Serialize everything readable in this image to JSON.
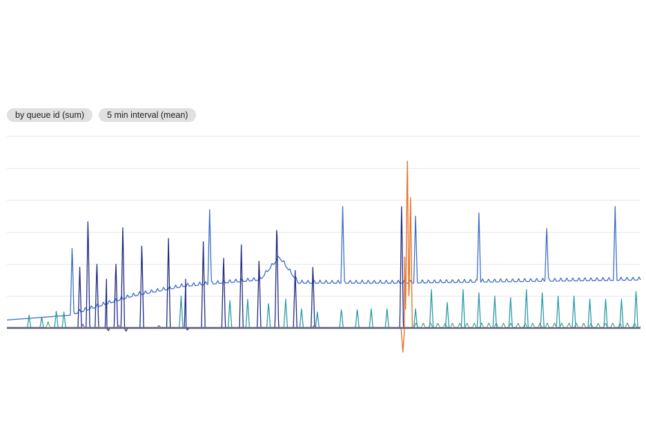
{
  "filters": {
    "group_by_label": "by queue id (sum)",
    "interval_label": "5 min interval (mean)"
  },
  "colors": {
    "grid": "#e6e6e6",
    "baseline": "#5f6368"
  },
  "chart_data": {
    "type": "line",
    "title": "",
    "xlabel": "",
    "ylabel": "",
    "grid": true,
    "gridlines": 6,
    "x_ticks_shown": false,
    "y_ticks_shown": false,
    "ylim": [
      -0.8,
      6.2
    ],
    "legend": "none",
    "series": [
      {
        "color": "#3d6dc8",
        "width": 1.3,
        "base": [
          [
            0,
            0.25
          ],
          [
            0.1,
            0.4
          ],
          [
            0.2,
            1.0
          ],
          [
            0.28,
            1.3
          ],
          [
            0.4,
            1.5
          ],
          [
            0.43,
            2.2
          ],
          [
            0.46,
            1.4
          ],
          [
            0.62,
            1.4
          ],
          [
            1.0,
            1.5
          ]
        ],
        "ripple_period": 0.0095,
        "ripple_amp": 0.1,
        "ripple_from": 0.1,
        "spikes": [
          [
            0.103,
            2.6
          ],
          [
            0.32,
            3.7
          ],
          [
            0.53,
            3.8
          ],
          [
            0.645,
            3.5
          ],
          [
            0.745,
            3.6
          ],
          [
            0.852,
            3.2
          ],
          [
            0.96,
            3.8
          ]
        ]
      },
      {
        "color": "#1f2a80",
        "width": 1.3,
        "base": [
          [
            0,
            0.0
          ],
          [
            1.0,
            0.0
          ]
        ],
        "spikes": [
          [
            0.115,
            1.9
          ],
          [
            0.128,
            3.5
          ],
          [
            0.142,
            2.1
          ],
          [
            0.158,
            2.2
          ],
          [
            0.172,
            2.1
          ],
          [
            0.183,
            3.3
          ],
          [
            0.213,
            2.7
          ],
          [
            0.255,
            2.8
          ],
          [
            0.283,
            2.2
          ],
          [
            0.31,
            2.7
          ],
          [
            0.342,
            2.3
          ],
          [
            0.37,
            2.6
          ],
          [
            0.398,
            2.2
          ],
          [
            0.426,
            3.4
          ],
          [
            0.455,
            1.8
          ],
          [
            0.483,
            2.0
          ],
          [
            0.623,
            4.0
          ]
        ],
        "dips": [
          [
            0.16,
            -0.08
          ],
          [
            0.188,
            -0.1
          ],
          [
            0.285,
            -0.06
          ]
        ]
      },
      {
        "color": "#2a9aa6",
        "width": 1.3,
        "base": [
          [
            0,
            0.0
          ],
          [
            1.0,
            0.0
          ]
        ],
        "spikes": [
          [
            0.035,
            0.4
          ],
          [
            0.055,
            0.35
          ],
          [
            0.078,
            0.55
          ],
          [
            0.09,
            0.5
          ],
          [
            0.275,
            1.0
          ],
          [
            0.352,
            0.9
          ],
          [
            0.38,
            0.9
          ],
          [
            0.413,
            0.8
          ],
          [
            0.44,
            0.9
          ],
          [
            0.465,
            0.6
          ],
          [
            0.49,
            0.5
          ],
          [
            0.528,
            0.6
          ],
          [
            0.553,
            0.6
          ],
          [
            0.575,
            0.6
          ],
          [
            0.6,
            0.6
          ],
          [
            0.645,
            0.6
          ],
          [
            0.67,
            1.2
          ],
          [
            0.695,
            0.8
          ],
          [
            0.72,
            1.2
          ],
          [
            0.745,
            1.1
          ],
          [
            0.77,
            1.0
          ],
          [
            0.795,
            0.95
          ],
          [
            0.82,
            1.2
          ],
          [
            0.845,
            1.1
          ],
          [
            0.87,
            1.0
          ],
          [
            0.895,
            1.0
          ],
          [
            0.92,
            0.9
          ],
          [
            0.945,
            0.9
          ],
          [
            0.97,
            0.9
          ],
          [
            0.993,
            1.2
          ]
        ]
      },
      {
        "color": "#e8742a",
        "width": 1.4,
        "base": [
          [
            0,
            0.0
          ],
          [
            1.0,
            0.0
          ]
        ],
        "spikes": [
          [
            0.632,
            5.5
          ],
          [
            0.637,
            4.3
          ],
          [
            0.627,
            3.2
          ]
        ],
        "dips": [
          [
            0.625,
            -0.75
          ]
        ]
      },
      {
        "color": "#3aa55c",
        "width": 1.1,
        "base": [
          [
            0,
            0.02
          ],
          [
            1.0,
            0.02
          ]
        ],
        "ripple_period": 0.0115,
        "ripple_amp": 0.14,
        "ripple_from": 0.64,
        "spikes": [
          [
            0.065,
            0.2
          ]
        ]
      },
      {
        "color": "#8b3fb8",
        "width": 1.1,
        "base": [
          [
            0,
            0.01
          ],
          [
            1.0,
            0.01
          ]
        ],
        "spikes": [
          [
            0.12,
            0.12
          ],
          [
            0.176,
            0.1
          ],
          [
            0.24,
            0.08
          ],
          [
            0.485,
            0.08
          ]
        ]
      }
    ]
  }
}
